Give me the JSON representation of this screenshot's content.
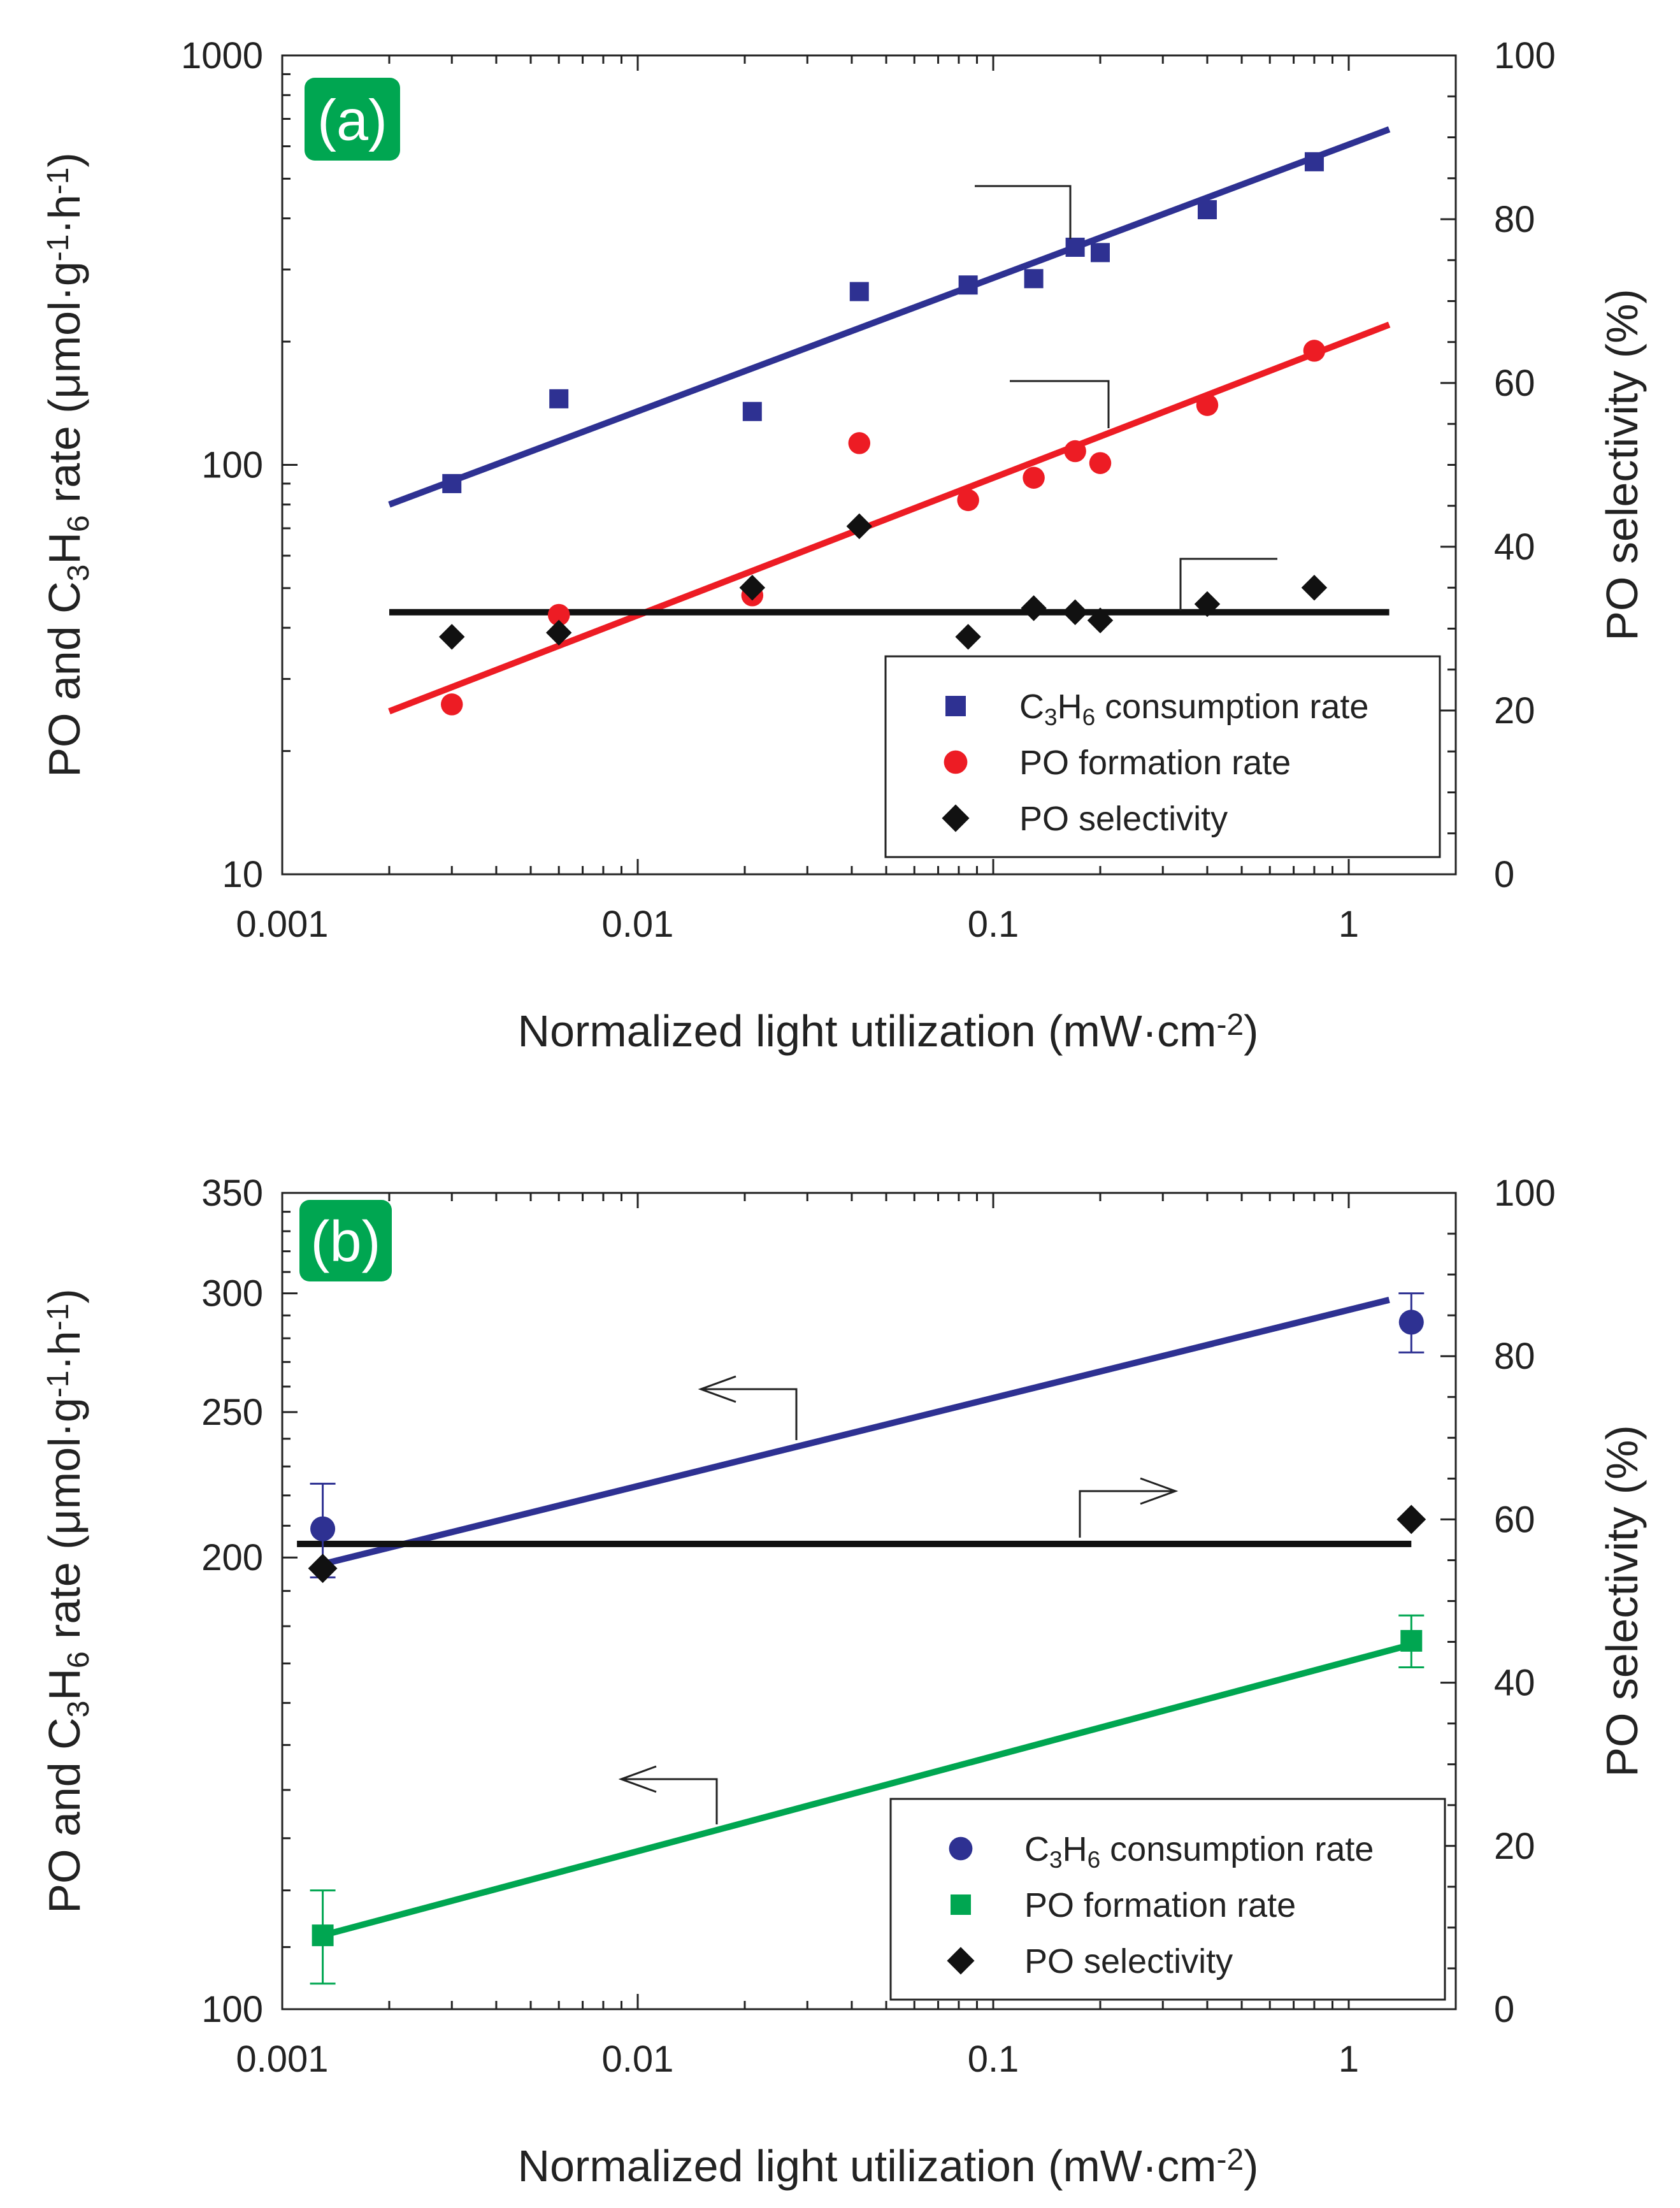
{
  "chart_data": [
    {
      "panel": "a",
      "panel_label": "(a)",
      "type": "scatter",
      "title": "",
      "xlabel": "Normalized light utilization (mW·cm⁻²)",
      "ylabel_left": "PO and C₃H₆ rate (μmol·g⁻¹·h⁻¹)",
      "ylabel_right": "PO selectivity (%)",
      "xscale": "log",
      "yscale_left": "log",
      "xlim": [
        0.001,
        2
      ],
      "ylim_left": [
        10,
        1000
      ],
      "ylim_right": [
        0,
        100
      ],
      "x_ticks": [
        0.001,
        0.01,
        0.1,
        1
      ],
      "x_tick_labels": [
        "0.001",
        "0.01",
        "0.1",
        "1"
      ],
      "y_left_ticks": [
        10,
        100,
        1000
      ],
      "y_left_tick_labels": [
        "10",
        "100",
        "1000"
      ],
      "y_right_ticks": [
        0,
        20,
        40,
        60,
        80,
        100
      ],
      "y_right_tick_labels": [
        "0",
        "20",
        "40",
        "60",
        "80",
        "100"
      ],
      "legend_position": "bottom-right",
      "legend": [
        {
          "label": "C₃H₆ consumption rate",
          "marker": "square",
          "color": "#2e3192"
        },
        {
          "label": "PO formation rate",
          "marker": "circle",
          "color": "#ed1c24"
        },
        {
          "label": "PO selectivity",
          "marker": "diamond",
          "color": "#111111"
        }
      ],
      "series": [
        {
          "name": "C3H6 consumption rate",
          "axis": "left",
          "marker": "square",
          "color": "#2e3192",
          "x": [
            0.003,
            0.006,
            0.021,
            0.042,
            0.085,
            0.13,
            0.17,
            0.2,
            0.4,
            0.8
          ],
          "y": [
            90,
            145,
            135,
            265,
            275,
            285,
            340,
            330,
            420,
            550
          ],
          "fit": {
            "x": [
              0.002,
              1.3
            ],
            "y": [
              80,
              660
            ]
          }
        },
        {
          "name": "PO formation rate",
          "axis": "left",
          "marker": "circle",
          "color": "#ed1c24",
          "x": [
            0.003,
            0.006,
            0.021,
            0.042,
            0.085,
            0.13,
            0.17,
            0.2,
            0.4,
            0.8
          ],
          "y": [
            26,
            43,
            48,
            113,
            82,
            93,
            108,
            101,
            140,
            190
          ],
          "fit": {
            "x": [
              0.002,
              1.3
            ],
            "y": [
              25,
              220
            ]
          }
        },
        {
          "name": "PO selectivity",
          "axis": "right",
          "marker": "diamond",
          "color": "#111111",
          "x": [
            0.003,
            0.006,
            0.021,
            0.042,
            0.085,
            0.13,
            0.17,
            0.2,
            0.4,
            0.8
          ],
          "y": [
            29,
            29.5,
            35,
            42.5,
            29,
            32.5,
            32,
            31,
            33,
            35
          ],
          "fit": {
            "x": [
              0.002,
              1.3
            ],
            "y": [
              32,
              32
            ]
          }
        }
      ]
    },
    {
      "panel": "b",
      "panel_label": "(b)",
      "type": "scatter",
      "title": "",
      "xlabel": "Normalized light utilization (mW·cm⁻²)",
      "ylabel_left": "PO and C₃H₆ rate (μmol·g⁻¹·h⁻¹)",
      "ylabel_right": "PO selectivity (%)",
      "xscale": "log",
      "yscale_left": "log",
      "xlim": [
        0.001,
        2
      ],
      "ylim_left": [
        100,
        350
      ],
      "ylim_right": [
        0,
        100
      ],
      "x_ticks": [
        0.001,
        0.01,
        0.1,
        1
      ],
      "x_tick_labels": [
        "0.001",
        "0.01",
        "0.1",
        "1"
      ],
      "y_left_ticks": [
        100,
        200,
        250,
        300,
        350
      ],
      "y_left_tick_labels": [
        "100",
        "200",
        "250",
        "300",
        "350"
      ],
      "y_right_ticks": [
        0,
        20,
        40,
        60,
        80,
        100
      ],
      "y_right_tick_labels": [
        "0",
        "20",
        "40",
        "60",
        "80",
        "100"
      ],
      "legend_position": "bottom-right",
      "legend": [
        {
          "label": "C₃H₆ consumption rate",
          "marker": "circle",
          "color": "#2e3192"
        },
        {
          "label": "PO formation rate",
          "marker": "square",
          "color": "#00a651"
        },
        {
          "label": "PO selectivity",
          "marker": "diamond",
          "color": "#111111"
        }
      ],
      "series": [
        {
          "name": "C3H6 consumption rate",
          "axis": "left",
          "marker": "circle",
          "color": "#2e3192",
          "x": [
            0.0013,
            1.5
          ],
          "y": [
            209,
            287
          ],
          "err": [
            15,
            13
          ],
          "fit": {
            "x": [
              0.0013,
              1.3
            ],
            "y": [
              198,
              297
            ]
          }
        },
        {
          "name": "PO formation rate",
          "axis": "left",
          "marker": "square",
          "color": "#00a651",
          "x": [
            0.0013,
            1.5
          ],
          "y": [
            112,
            176
          ],
          "err": [
            8,
            7
          ],
          "fit": {
            "x": [
              0.0013,
              1.5
            ],
            "y": [
              112,
              175
            ]
          }
        },
        {
          "name": "PO selectivity",
          "axis": "right",
          "marker": "diamond",
          "color": "#111111",
          "x": [
            0.0013,
            1.5
          ],
          "y": [
            54,
            60
          ],
          "fit": {
            "x": [
              0.0011,
              1.5
            ],
            "y": [
              57,
              57
            ]
          }
        }
      ]
    }
  ]
}
